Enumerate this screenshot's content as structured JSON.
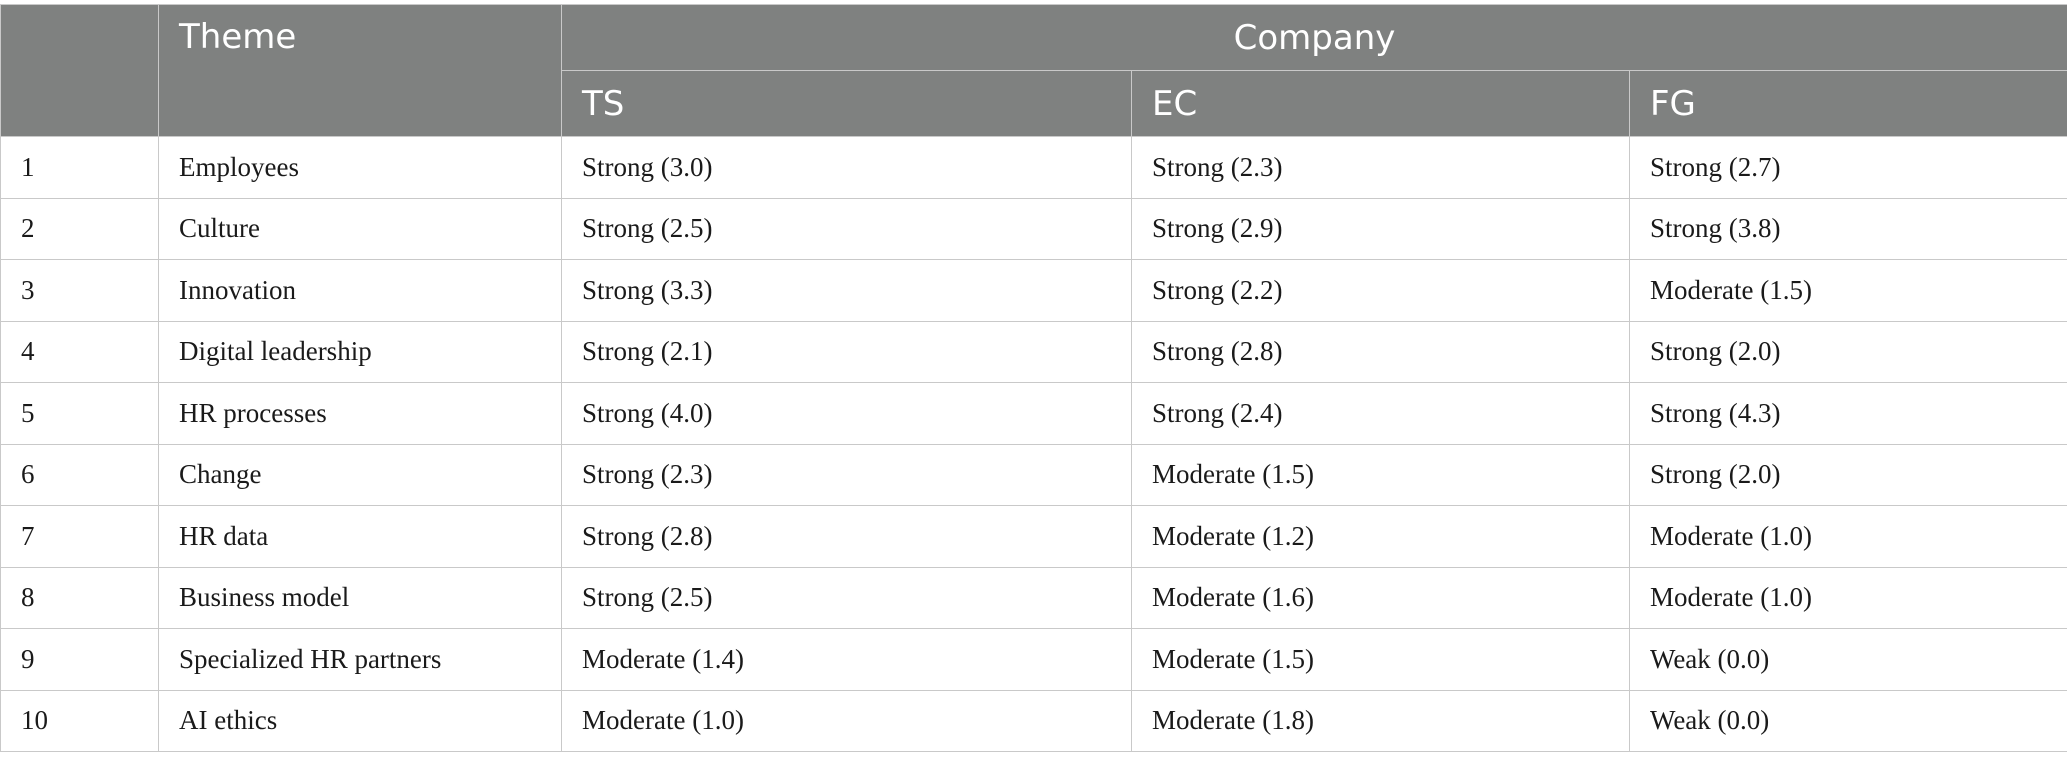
{
  "table": {
    "header": {
      "theme": "Theme",
      "company": "Company",
      "companies": [
        "TS",
        "EC",
        "FG"
      ]
    },
    "rows": [
      {
        "num": "1",
        "theme": "Employees",
        "ts": "Strong (3.0)",
        "ec": "Strong (2.3)",
        "fg": "Strong (2.7)"
      },
      {
        "num": "2",
        "theme": "Culture",
        "ts": "Strong (2.5)",
        "ec": "Strong (2.9)",
        "fg": "Strong (3.8)"
      },
      {
        "num": "3",
        "theme": "Innovation",
        "ts": "Strong (3.3)",
        "ec": "Strong (2.2)",
        "fg": "Moderate (1.5)"
      },
      {
        "num": "4",
        "theme": "Digital leadership",
        "ts": "Strong (2.1)",
        "ec": "Strong (2.8)",
        "fg": "Strong (2.0)"
      },
      {
        "num": "5",
        "theme": "HR processes",
        "ts": "Strong (4.0)",
        "ec": "Strong (2.4)",
        "fg": "Strong (4.3)"
      },
      {
        "num": "6",
        "theme": "Change",
        "ts": "Strong (2.3)",
        "ec": "Moderate (1.5)",
        "fg": "Strong (2.0)"
      },
      {
        "num": "7",
        "theme": "HR data",
        "ts": "Strong (2.8)",
        "ec": "Moderate (1.2)",
        "fg": "Moderate (1.0)"
      },
      {
        "num": "8",
        "theme": "Business model",
        "ts": "Strong (2.5)",
        "ec": "Moderate (1.6)",
        "fg": "Moderate (1.0)"
      },
      {
        "num": "9",
        "theme": "Specialized HR partners",
        "ts": "Moderate (1.4)",
        "ec": "Moderate (1.5)",
        "fg": "Weak (0.0)"
      },
      {
        "num": "10",
        "theme": "AI ethics",
        "ts": "Moderate (1.0)",
        "ec": "Moderate (1.8)",
        "fg": "Weak (0.0)"
      }
    ]
  },
  "colors": {
    "header_bg": "#7f8180",
    "header_text": "#ffffff",
    "border": "#c9c9c9",
    "body_text": "#1a1a1a"
  }
}
